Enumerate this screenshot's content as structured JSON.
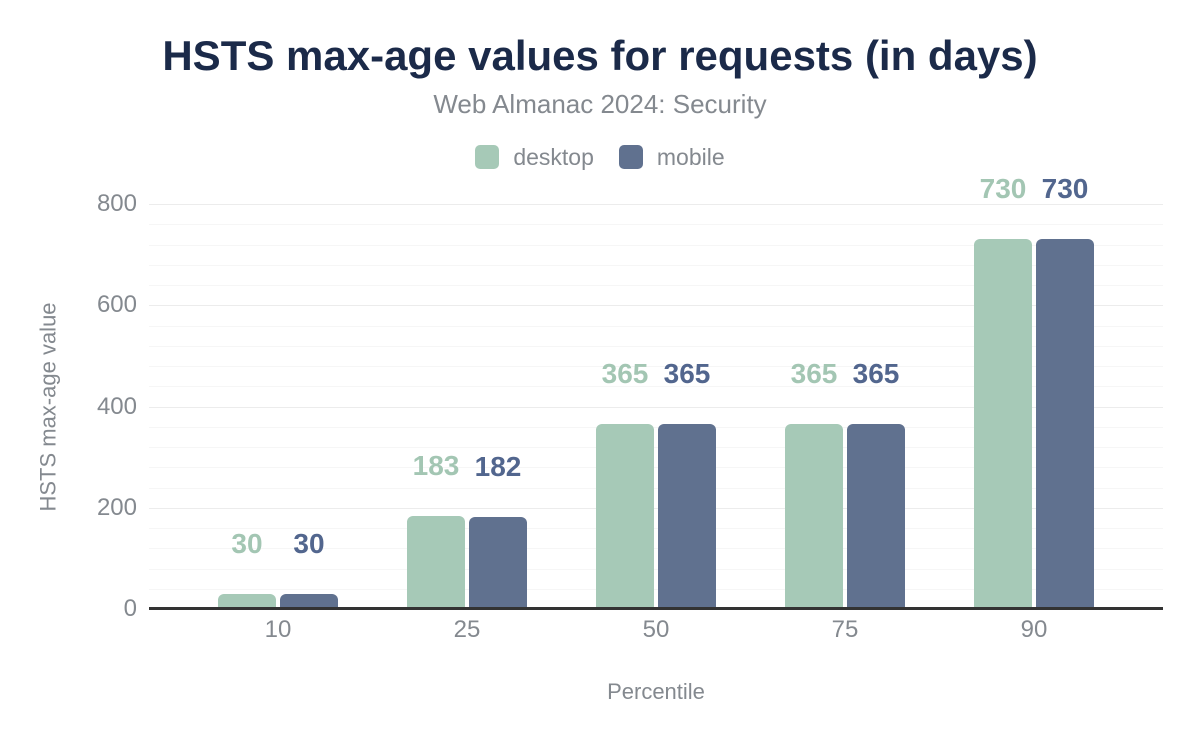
{
  "chart_data": {
    "type": "bar",
    "title": "HSTS max-age values for requests (in days)",
    "subtitle": "Web Almanac 2024: Security",
    "xlabel": "Percentile",
    "ylabel": "HSTS max-age value",
    "categories": [
      "10",
      "25",
      "50",
      "75",
      "90"
    ],
    "series": [
      {
        "name": "desktop",
        "color": "#a6c9b7",
        "label_color": "#a3c6b3",
        "values": [
          30,
          183,
          365,
          365,
          730
        ]
      },
      {
        "name": "mobile",
        "color": "#60718f",
        "label_color": "#52668e",
        "values": [
          30,
          182,
          365,
          365,
          730
        ]
      }
    ],
    "ylim": [
      0,
      800
    ],
    "ytick_step": 200,
    "yticks": [
      "0",
      "200",
      "400",
      "600",
      "800"
    ],
    "minor_step": 40,
    "grid": true,
    "data_labels": true,
    "legend_position": "top"
  },
  "colors": {
    "title": "#1b2a49",
    "muted_text": "#84898f",
    "axis_line": "#333333",
    "major_gridline": "#ececec",
    "minor_gridline": "#f6f6f6",
    "background": "#ffffff"
  }
}
